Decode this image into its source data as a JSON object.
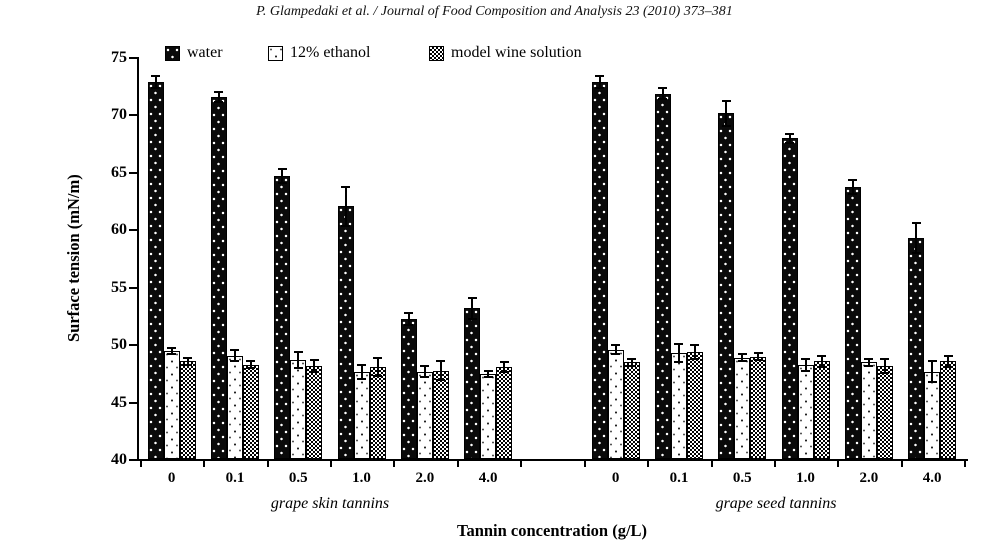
{
  "header": {
    "citation": "P. Glampedaki et al. / Journal of Food Composition and Analysis 23 (2010) 373–381"
  },
  "chart_data": {
    "type": "bar",
    "title": "",
    "xlabel": "Tannin concentration (g/L)",
    "ylabel": "Surface tension (mN/m)",
    "ylim": [
      40,
      75
    ],
    "yticks": [
      40,
      45,
      50,
      55,
      60,
      65,
      70,
      75
    ],
    "grid": false,
    "legend_position": "top-inside",
    "error_bars": true,
    "legend": [
      {
        "label": "water",
        "pattern": "black-with-white-dots"
      },
      {
        "label": "12% ethanol",
        "pattern": "white-speckled"
      },
      {
        "label": "model wine solution",
        "pattern": "checkerboard"
      }
    ],
    "groups": [
      {
        "label": "grape skin tannins",
        "categories": [
          "0",
          "0.1",
          "0.5",
          "1.0",
          "2.0",
          "4.0"
        ],
        "series": [
          {
            "name": "water",
            "values": [
              72.8,
              71.5,
              64.6,
              62.0,
              52.2,
              53.1
            ],
            "errors": [
              0.5,
              0.4,
              0.6,
              1.7,
              0.5,
              0.9
            ]
          },
          {
            "name": "12% ethanol",
            "values": [
              49.4,
              49.0,
              48.6,
              47.6,
              47.6,
              47.4
            ],
            "errors": [
              0.3,
              0.5,
              0.7,
              0.6,
              0.5,
              0.3
            ]
          },
          {
            "name": "model wine solution",
            "values": [
              48.5,
              48.2,
              48.1,
              48.0,
              47.7,
              48.0
            ],
            "errors": [
              0.3,
              0.3,
              0.5,
              0.8,
              0.8,
              0.4
            ]
          }
        ]
      },
      {
        "label": "grape seed tannins",
        "categories": [
          "0",
          "0.1",
          "0.5",
          "1.0",
          "2.0",
          "4.0"
        ],
        "series": [
          {
            "name": "water",
            "values": [
              72.8,
              71.8,
              70.1,
              67.9,
              63.7,
              59.2
            ],
            "errors": [
              0.5,
              0.5,
              1.1,
              0.4,
              0.6,
              1.3
            ]
          },
          {
            "name": "12% ethanol",
            "values": [
              49.5,
              49.2,
              48.8,
              48.2,
              48.4,
              47.6
            ],
            "errors": [
              0.4,
              0.8,
              0.3,
              0.5,
              0.3,
              0.9
            ]
          },
          {
            "name": "model wine solution",
            "values": [
              48.4,
              49.3,
              48.9,
              48.5,
              48.1,
              48.5
            ],
            "errors": [
              0.3,
              0.6,
              0.3,
              0.5,
              0.6,
              0.5
            ]
          }
        ]
      }
    ]
  }
}
